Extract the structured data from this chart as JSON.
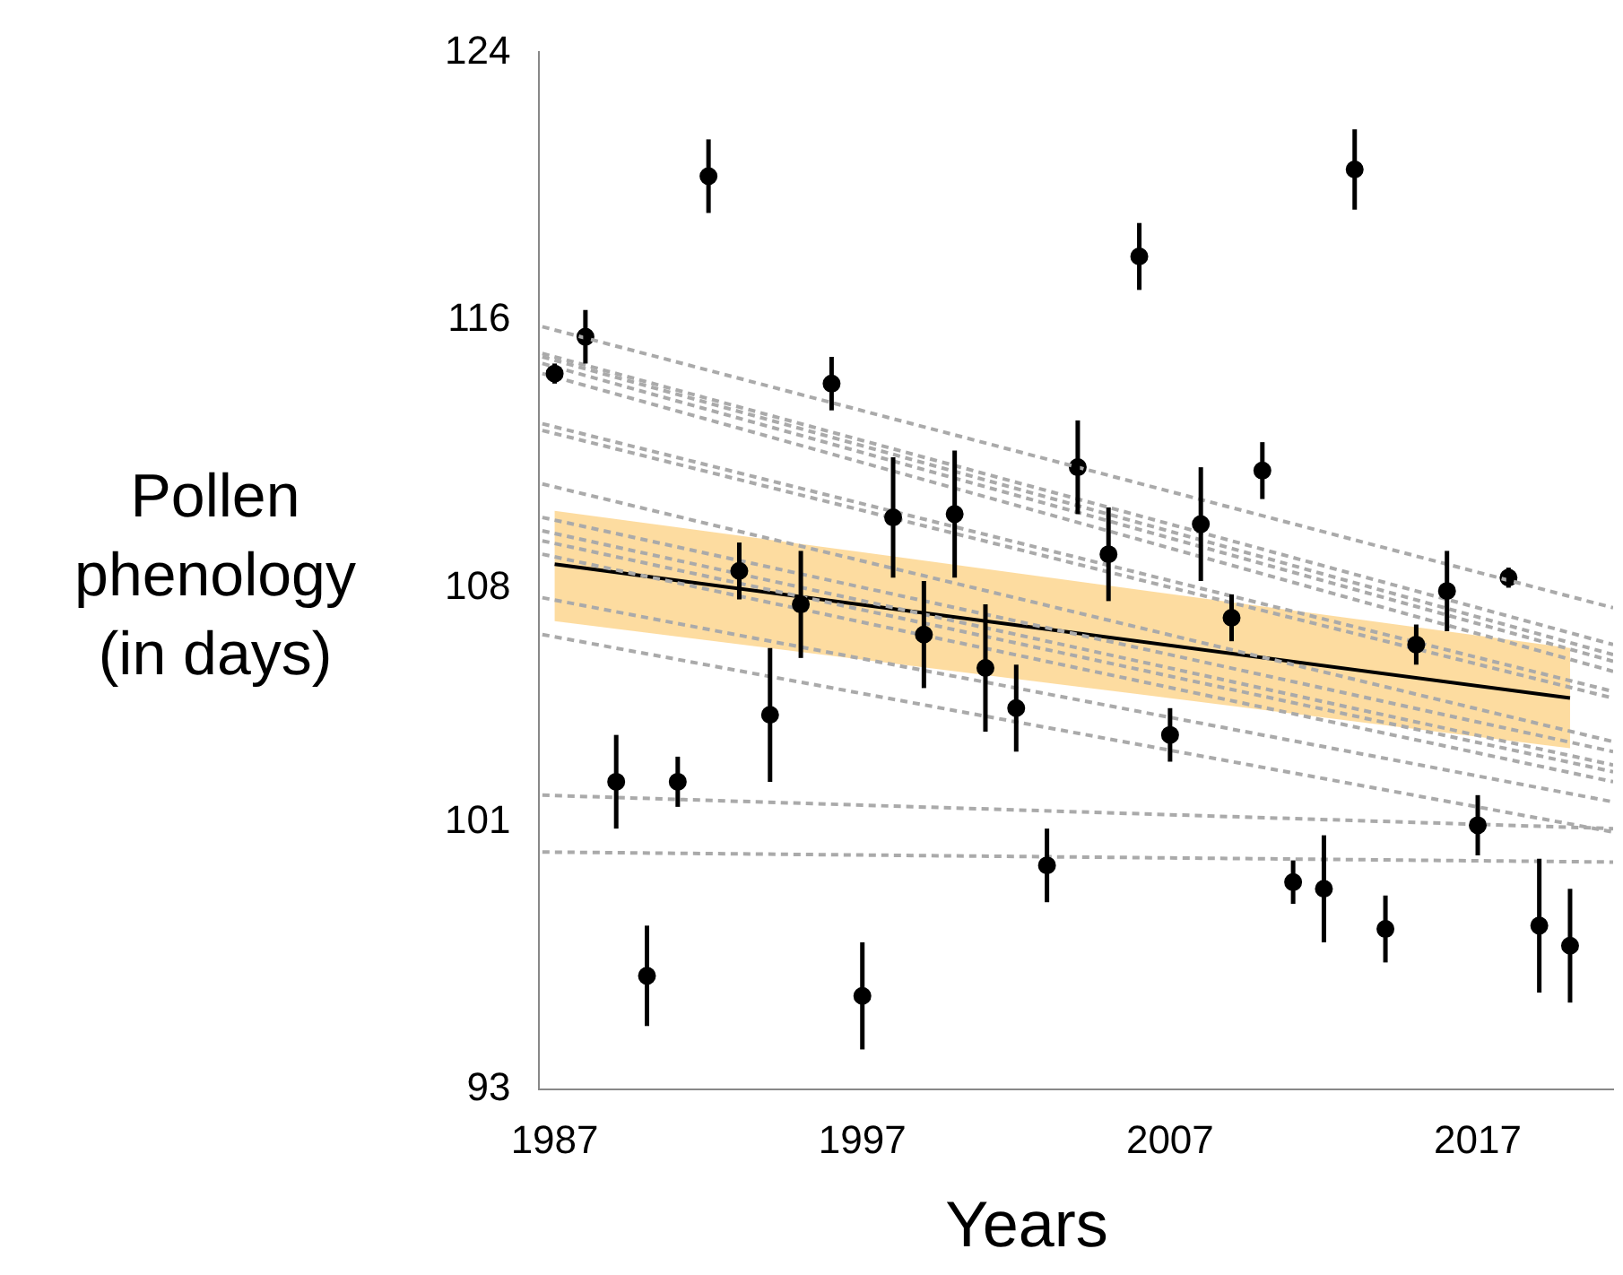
{
  "chart_data": {
    "type": "scatter",
    "xlabel": "Years",
    "ylabel": "Pollen phenology (in days)",
    "xlim": [
      1986.5,
      2021.4
    ],
    "xticks": [
      1987,
      1997,
      2007,
      2017
    ],
    "ylim": [
      93,
      124
    ],
    "yticks": [
      93,
      101,
      108,
      116,
      124
    ],
    "grid": false,
    "legend": false,
    "series": [
      {
        "type": "line",
        "color": "#aaaaaa",
        "line_style": "dashed",
        "marker": "none",
        "x": [
          1986.6,
          2021.4
        ],
        "values": [
          115.8,
          107.4
        ]
      },
      {
        "type": "line",
        "color": "#aaaaaa",
        "line_style": "dashed",
        "marker": "none",
        "x": [
          1986.6,
          2021.4
        ],
        "values": [
          115.0,
          106.3
        ]
      },
      {
        "type": "line",
        "color": "#aaaaaa",
        "line_style": "dashed",
        "marker": "none",
        "x": [
          1986.6,
          2021.4
        ],
        "values": [
          114.9,
          106.0
        ]
      },
      {
        "type": "line",
        "color": "#aaaaaa",
        "line_style": "dashed",
        "marker": "none",
        "x": [
          1986.6,
          2021.4
        ],
        "values": [
          114.7,
          105.8
        ]
      },
      {
        "type": "line",
        "color": "#aaaaaa",
        "line_style": "dashed",
        "marker": "none",
        "x": [
          1986.6,
          2021.4
        ],
        "values": [
          114.4,
          105.5
        ]
      },
      {
        "type": "line",
        "color": "#aaaaaa",
        "line_style": "dashed",
        "marker": "none",
        "x": [
          1986.6,
          2021.4
        ],
        "values": [
          112.9,
          104.9
        ]
      },
      {
        "type": "line",
        "color": "#aaaaaa",
        "line_style": "dashed",
        "marker": "none",
        "x": [
          1986.6,
          2021.4
        ],
        "values": [
          112.7,
          104.7
        ]
      },
      {
        "type": "line",
        "color": "#aaaaaa",
        "line_style": "dashed",
        "marker": "none",
        "x": [
          1986.6,
          2021.4
        ],
        "values": [
          111.1,
          103.4
        ]
      },
      {
        "type": "line",
        "color": "#aaaaaa",
        "line_style": "dashed",
        "marker": "none",
        "x": [
          1986.6,
          2021.4
        ],
        "values": [
          110.1,
          103.1
        ]
      },
      {
        "type": "line",
        "color": "#aaaaaa",
        "line_style": "dashed",
        "marker": "none",
        "x": [
          1986.6,
          2021.4
        ],
        "values": [
          109.7,
          102.7
        ]
      },
      {
        "type": "line",
        "color": "#aaaaaa",
        "line_style": "dashed",
        "marker": "none",
        "x": [
          1986.6,
          2021.4
        ],
        "values": [
          109.4,
          102.5
        ]
      },
      {
        "type": "line",
        "color": "#aaaaaa",
        "line_style": "dashed",
        "marker": "none",
        "x": [
          1986.6,
          2021.4
        ],
        "values": [
          109.0,
          102.2
        ]
      },
      {
        "type": "line",
        "color": "#aaaaaa",
        "line_style": "dashed",
        "marker": "none",
        "x": [
          1986.6,
          2021.4
        ],
        "values": [
          107.7,
          101.6
        ]
      },
      {
        "type": "line",
        "color": "#aaaaaa",
        "line_style": "dashed",
        "marker": "none",
        "x": [
          1986.6,
          2021.4
        ],
        "values": [
          106.6,
          100.7
        ]
      },
      {
        "type": "line",
        "color": "#aaaaaa",
        "line_style": "dashed",
        "marker": "none",
        "x": [
          1986.6,
          2021.4
        ],
        "values": [
          101.8,
          100.8
        ]
      },
      {
        "type": "line",
        "color": "#aaaaaa",
        "line_style": "dashed",
        "marker": "none",
        "x": [
          1986.6,
          2021.4
        ],
        "values": [
          100.1,
          99.8
        ]
      },
      {
        "type": "line",
        "color": "#000000",
        "line_style": "solid",
        "marker": "none",
        "x": [
          1987,
          2020
        ],
        "values": [
          108.7,
          104.7
        ],
        "lower": [
          107.0,
          103.2
        ],
        "upper": [
          110.3,
          106.2
        ]
      },
      {
        "type": "scatter",
        "color": "#000000",
        "marker": "circle",
        "x": [
          1987,
          1988,
          1989,
          1990,
          1991,
          1992,
          1993,
          1994,
          1995,
          1996,
          1997,
          1998,
          1999,
          2000,
          2001,
          2002,
          2003,
          2004,
          2005,
          2006,
          2007,
          2008,
          2009,
          2010,
          2011,
          2012,
          2013,
          2014,
          2015,
          2016,
          2017,
          2018,
          2019,
          2020
        ],
        "values": [
          114.4,
          115.5,
          102.2,
          96.4,
          102.2,
          120.3,
          108.5,
          104.2,
          107.5,
          114.1,
          95.8,
          110.1,
          106.6,
          110.2,
          105.6,
          104.4,
          99.7,
          111.6,
          109.0,
          117.9,
          103.6,
          109.9,
          107.1,
          111.5,
          99.2,
          99.0,
          120.5,
          97.8,
          106.3,
          107.9,
          100.9,
          108.3,
          97.9,
          97.3
        ],
        "errors": [
          0.3,
          0.8,
          1.4,
          1.5,
          0.75,
          1.1,
          0.85,
          2.0,
          1.6,
          0.8,
          1.6,
          1.8,
          1.6,
          1.9,
          1.9,
          1.3,
          1.1,
          1.4,
          1.4,
          1.0,
          0.8,
          1.7,
          0.7,
          0.85,
          0.65,
          1.6,
          1.2,
          1.0,
          0.6,
          1.2,
          0.9,
          0.3,
          2.0,
          1.7
        ]
      }
    ]
  }
}
